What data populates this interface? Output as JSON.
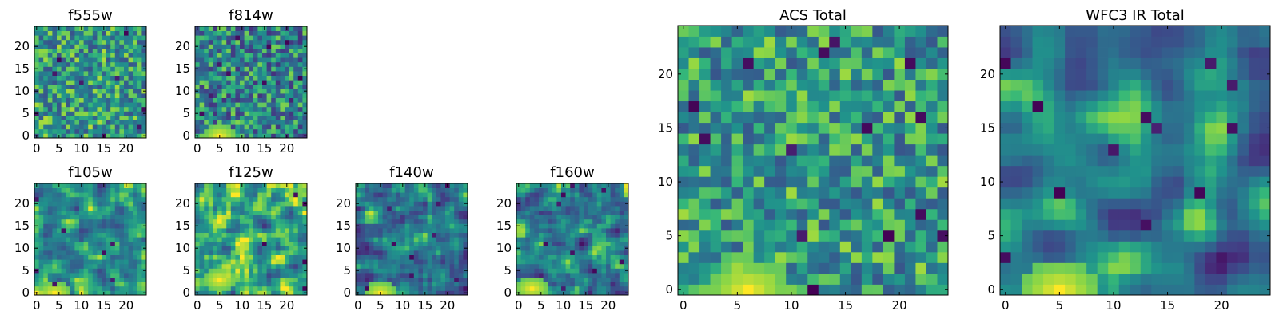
{
  "chart_data": [
    {
      "type": "heatmap",
      "title": "f555w",
      "x_ticks": [
        0,
        5,
        10,
        15,
        20
      ],
      "y_ticks": [
        0,
        5,
        10,
        15,
        20
      ],
      "xlim": [
        -0.5,
        24.5
      ],
      "ylim": [
        -0.5,
        24.5
      ],
      "grid_size": 25,
      "colormap": "viridis",
      "seed": 11,
      "bias": 0.62,
      "variation": 0.3,
      "smooth": 0,
      "hot_spot": null,
      "cold_spots": 10
    },
    {
      "type": "heatmap",
      "title": "f814w",
      "x_ticks": [
        0,
        5,
        10,
        15,
        20
      ],
      "y_ticks": [
        0,
        5,
        10,
        15,
        20
      ],
      "xlim": [
        -0.5,
        24.5
      ],
      "ylim": [
        -0.5,
        24.5
      ],
      "grid_size": 25,
      "colormap": "viridis",
      "seed": 23,
      "bias": 0.52,
      "variation": 0.34,
      "smooth": 0,
      "hot_spot": [
        5,
        0
      ],
      "cold_spots": 10
    },
    {
      "type": "heatmap",
      "title": "f105w",
      "x_ticks": [
        0,
        5,
        10,
        15,
        20
      ],
      "y_ticks": [
        0,
        5,
        10,
        15,
        20
      ],
      "xlim": [
        -0.5,
        24.5
      ],
      "ylim": [
        -0.5,
        24.5
      ],
      "grid_size": 25,
      "colormap": "viridis",
      "seed": 37,
      "bias": 0.58,
      "variation": 0.42,
      "smooth": 1,
      "hot_spot": [
        4,
        0
      ],
      "cold_spots": 7
    },
    {
      "type": "heatmap",
      "title": "f125w",
      "x_ticks": [
        0,
        5,
        10,
        15,
        20
      ],
      "y_ticks": [
        0,
        5,
        10,
        15,
        20
      ],
      "xlim": [
        -0.5,
        24.5
      ],
      "ylim": [
        -0.5,
        24.5
      ],
      "grid_size": 25,
      "colormap": "viridis",
      "seed": 41,
      "bias": 0.64,
      "variation": 0.44,
      "smooth": 1,
      "hot_spot": [
        5,
        3
      ],
      "cold_spots": 5
    },
    {
      "type": "heatmap",
      "title": "f140w",
      "x_ticks": [
        0,
        5,
        10,
        15,
        20
      ],
      "y_ticks": [
        0,
        5,
        10,
        15,
        20
      ],
      "xlim": [
        -0.5,
        24.5
      ],
      "ylim": [
        -0.5,
        24.5
      ],
      "grid_size": 25,
      "colormap": "viridis",
      "seed": 53,
      "bias": 0.5,
      "variation": 0.44,
      "smooth": 1,
      "hot_spot": [
        5,
        0
      ],
      "cold_spots": 9
    },
    {
      "type": "heatmap",
      "title": "f160w",
      "x_ticks": [
        0,
        5,
        10,
        15,
        20
      ],
      "y_ticks": [
        0,
        5,
        10,
        15,
        20
      ],
      "xlim": [
        -0.5,
        24.5
      ],
      "ylim": [
        -0.5,
        24.5
      ],
      "grid_size": 25,
      "colormap": "viridis",
      "seed": 67,
      "bias": 0.52,
      "variation": 0.46,
      "smooth": 1,
      "hot_spot": [
        3,
        1
      ],
      "cold_spots": 10
    },
    {
      "type": "heatmap",
      "title": "ACS Total",
      "x_ticks": [
        0,
        5,
        10,
        15,
        20
      ],
      "y_ticks": [
        0,
        5,
        10,
        15,
        20
      ],
      "xlim": [
        -0.5,
        24.5
      ],
      "ylim": [
        -0.5,
        24.5
      ],
      "grid_size": 25,
      "colormap": "viridis",
      "seed": 79,
      "bias": 0.62,
      "variation": 0.28,
      "smooth": 0,
      "hot_spot": [
        6,
        0
      ],
      "cold_spots": 14
    },
    {
      "type": "heatmap",
      "title": "WFC3 IR Total",
      "x_ticks": [
        0,
        5,
        10,
        15,
        20
      ],
      "y_ticks": [
        0,
        5,
        10,
        15,
        20
      ],
      "xlim": [
        -0.5,
        24.5
      ],
      "ylim": [
        -0.5,
        24.5
      ],
      "grid_size": 25,
      "colormap": "viridis",
      "seed": 97,
      "bias": 0.48,
      "variation": 0.4,
      "smooth": 2,
      "hot_spot": [
        5,
        0
      ],
      "cold_spots": 12
    }
  ]
}
